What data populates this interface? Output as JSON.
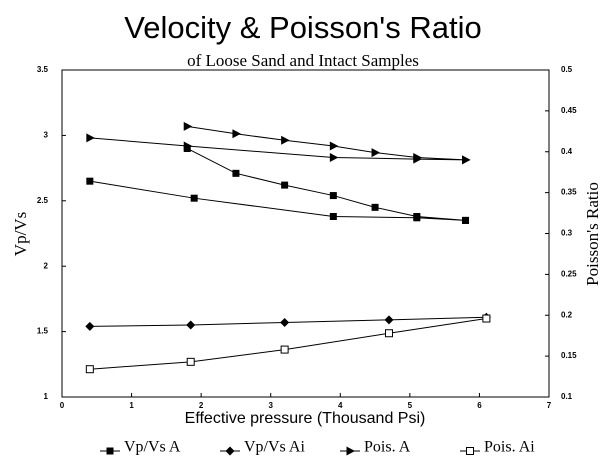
{
  "chart_data": {
    "type": "line",
    "title": "Velocity & Poisson's Ratio",
    "subtitle": "of Loose Sand and Intact Samples",
    "x_label": "Effective pressure (Thousand Psi)",
    "y_label": "Vp/Vs",
    "y2_label": "Poisson's Ratio",
    "xlim": [
      0,
      7
    ],
    "xticks": [
      0,
      1,
      2,
      3,
      4,
      5,
      6,
      7
    ],
    "ylim": [
      1,
      3.5
    ],
    "yticks": [
      1,
      1.5,
      2,
      2.5,
      3,
      3.5
    ],
    "y2lim": [
      0.1,
      0.5
    ],
    "y2ticks": [
      0.1,
      0.15,
      0.2,
      0.25,
      0.3,
      0.35,
      0.4,
      0.45,
      0.5
    ],
    "series": [
      {
        "name": "Vp/Vs A",
        "color": "#000000",
        "marker": "square",
        "x": [
          0.4,
          1.9,
          3.9,
          5.1,
          5.8,
          null,
          1.8,
          2.5,
          3.2,
          3.9,
          4.5,
          5.1,
          5.8
        ],
        "values": [
          2.65,
          2.52,
          2.38,
          2.37,
          2.35,
          null,
          2.9,
          2.71,
          2.62,
          2.54,
          2.45,
          2.38,
          2.35
        ]
      },
      {
        "name": "Vp/Vs Ai",
        "color": "#000000",
        "marker": "diamond",
        "x": [
          0.4,
          1.85,
          3.2,
          4.7,
          6.1
        ],
        "values": [
          1.54,
          1.55,
          1.57,
          1.59,
          1.61
        ]
      },
      {
        "name": "Pois. A",
        "color": "#000000",
        "marker": "triangle",
        "axis": "y2",
        "x": [
          0.4,
          1.8,
          3.9,
          5.1,
          5.8,
          null,
          1.8,
          2.5,
          3.2,
          3.9,
          4.5,
          5.1,
          5.8
        ],
        "values": [
          0.417,
          0.407,
          0.393,
          0.391,
          0.39,
          null,
          0.431,
          0.422,
          0.414,
          0.407,
          0.399,
          0.393,
          0.39
        ]
      },
      {
        "name": "Pois. Ai",
        "color": "#000000",
        "marker": "open-square",
        "axis": "y2",
        "x": [
          0.4,
          1.85,
          3.2,
          4.7,
          6.1
        ],
        "values": [
          0.134,
          0.143,
          0.158,
          0.178,
          0.196
        ]
      }
    ]
  }
}
